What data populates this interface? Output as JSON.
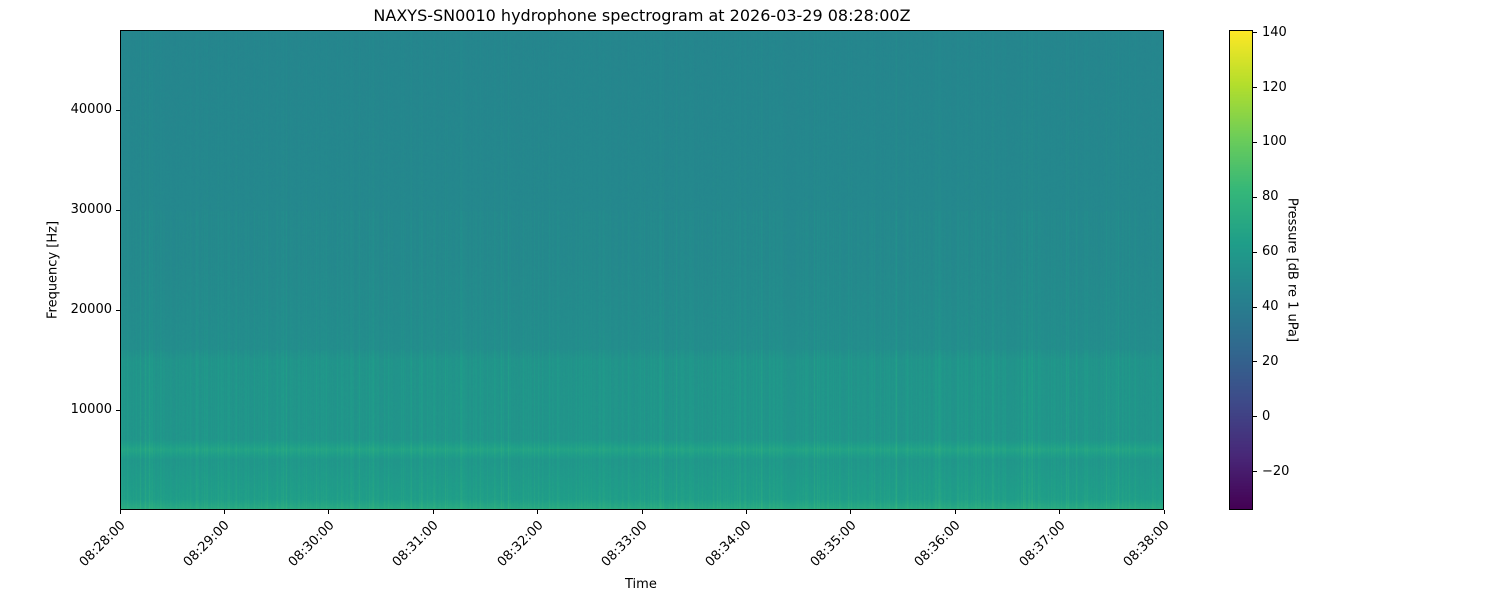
{
  "chart_data": {
    "type": "heatmap",
    "title": "NAXYS-SN0010 hydrophone spectrogram at 2026-03-29 08:28:00Z",
    "xlabel": "Time",
    "ylabel": "Frequency [Hz]",
    "x_ticks": [
      "08:28:00",
      "08:29:00",
      "08:30:00",
      "08:31:00",
      "08:32:00",
      "08:33:00",
      "08:34:00",
      "08:35:00",
      "08:36:00",
      "08:37:00",
      "08:38:00"
    ],
    "xlim": [
      "08:28:00",
      "08:38:00"
    ],
    "y_ticks": [
      10000,
      20000,
      30000,
      40000
    ],
    "ylim": [
      0,
      48000
    ],
    "colorbar": {
      "label": "Pressure [dB re 1 uPa]",
      "colormap": "viridis",
      "range": [
        -34,
        141
      ],
      "ticks": [
        -20,
        0,
        20,
        40,
        60,
        80,
        100,
        120,
        140
      ]
    },
    "approx_level_profile_db": [
      {
        "frequency_hz": 0,
        "level": 72
      },
      {
        "frequency_hz": 1000,
        "level": 62
      },
      {
        "frequency_hz": 5000,
        "level": 57
      },
      {
        "frequency_hz": 6000,
        "level": 66
      },
      {
        "frequency_hz": 7000,
        "level": 56
      },
      {
        "frequency_hz": 15000,
        "level": 55
      },
      {
        "frequency_hz": 16000,
        "level": 51
      },
      {
        "frequency_hz": 25000,
        "level": 48
      },
      {
        "frequency_hz": 48000,
        "level": 46
      }
    ],
    "grid": false
  }
}
